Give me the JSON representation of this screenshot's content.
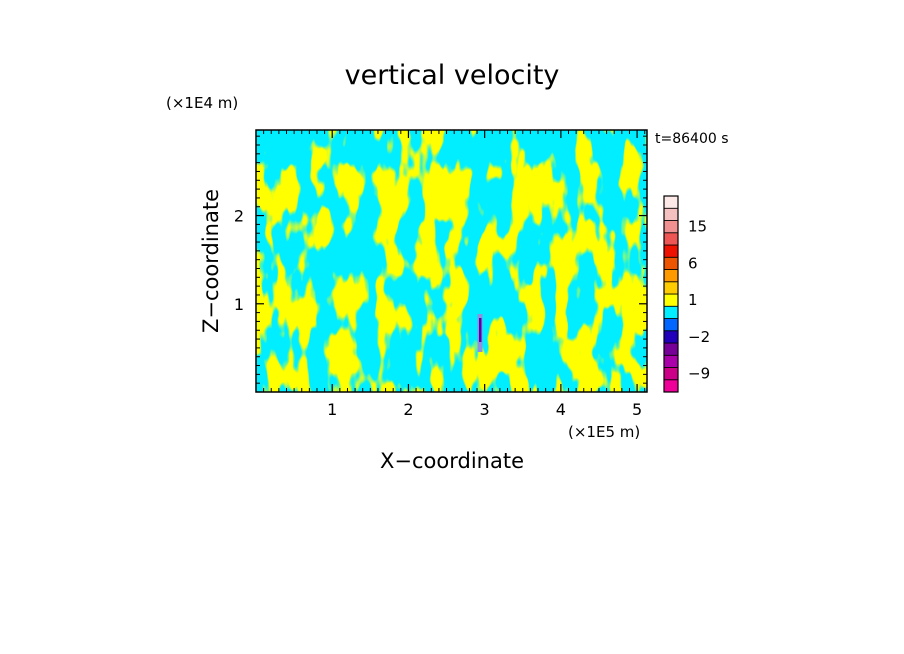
{
  "chart_data": {
    "type": "heatmap",
    "title": "vertical velocity",
    "xlabel": "X−coordinate",
    "ylabel": "Z−coordinate",
    "x_unit": "(×1E5 m)",
    "y_unit": "(×1E4 m)",
    "time_label": "t=86400 s",
    "xlim": [
      0,
      5.13
    ],
    "ylim": [
      0,
      2.97
    ],
    "x_ticks": [
      {
        "value": 1,
        "label": "1"
      },
      {
        "value": 2,
        "label": "2"
      },
      {
        "value": 3,
        "label": "3"
      },
      {
        "value": 4,
        "label": "4"
      },
      {
        "value": 5,
        "label": "5"
      }
    ],
    "y_ticks": [
      {
        "value": 1,
        "label": "1"
      },
      {
        "value": 2,
        "label": "2"
      }
    ],
    "field_colors": {
      "positive": "#ffff00",
      "negative": "#00eeff",
      "strong_negative": "#5500aa",
      "mid_negative": "#9090e0"
    },
    "colorbar": {
      "levels": [
        -12,
        -9,
        -6,
        -4,
        -2,
        -1,
        0,
        1,
        2,
        4,
        6,
        9,
        12,
        15,
        18,
        21
      ],
      "colors": [
        "#ee0099",
        "#cc0088",
        "#aa00aa",
        "#770099",
        "#2200bb",
        "#0066ff",
        "#00eeff",
        "#ffff00",
        "#ffcc00",
        "#ff9900",
        "#ee5500",
        "#ee1100",
        "#ee5555",
        "#f09090",
        "#f4c0c0",
        "#fde8e8"
      ],
      "labels": [
        {
          "value": -9,
          "label": "−9"
        },
        {
          "value": -2,
          "label": "−2"
        },
        {
          "value": 1,
          "label": "1"
        },
        {
          "value": 6,
          "label": "6"
        },
        {
          "value": 15,
          "label": "15"
        }
      ]
    }
  }
}
